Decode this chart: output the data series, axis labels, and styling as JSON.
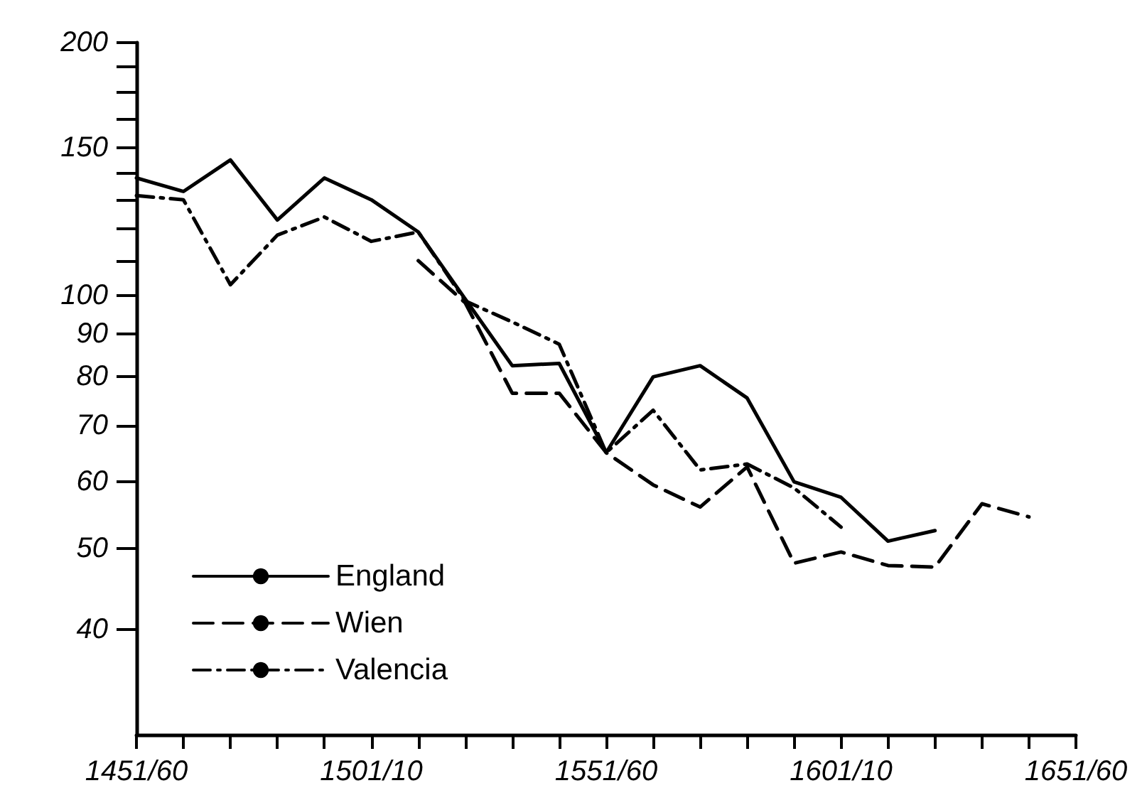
{
  "chart_data": {
    "type": "line",
    "log": "y",
    "legend": "bottom left",
    "categories": [
      "1451/60",
      null,
      null,
      null,
      null,
      "1501/10",
      null,
      null,
      null,
      null,
      "1551/60",
      null,
      null,
      null,
      null,
      "1601/10",
      null,
      null,
      null,
      null,
      "1651/60"
    ],
    "ylim": [
      30,
      200
    ],
    "yticks": [
      40,
      50,
      60,
      70,
      80,
      90,
      100,
      {
        "value": 110,
        "label": null
      },
      {
        "value": 120,
        "label": null
      },
      {
        "value": 130,
        "label": null
      },
      {
        "value": 140,
        "label": null
      },
      150,
      {
        "value": 162.5,
        "label": null
      },
      {
        "value": 175,
        "label": null
      },
      {
        "value": 187.5,
        "label": null
      },
      200
    ],
    "series": [
      {
        "name": "England",
        "color": "#000000",
        "line_style": "solid",
        "values": [
          138,
          133,
          145,
          123,
          138,
          130,
          119,
          99,
          82.5,
          83,
          65,
          80,
          82.5,
          75.5,
          60,
          57.5,
          51,
          52.5,
          null,
          null,
          null
        ]
      },
      {
        "name": "Wien",
        "color": "#000000",
        "line_style": "dashed",
        "values": [
          null,
          null,
          null,
          null,
          null,
          null,
          110,
          98,
          76.5,
          76.5,
          65,
          59.5,
          56,
          62.5,
          48,
          49.5,
          47.7,
          47.5,
          56.5,
          54.5,
          null
        ]
      },
      {
        "name": "Valencia",
        "color": "#000000",
        "line_style": "dashdot",
        "values": [
          131.5,
          130,
          103,
          118,
          124,
          116,
          119,
          98.5,
          93,
          87.5,
          65,
          73,
          62,
          63,
          59,
          53,
          null,
          null,
          null,
          null,
          null
        ]
      }
    ]
  }
}
